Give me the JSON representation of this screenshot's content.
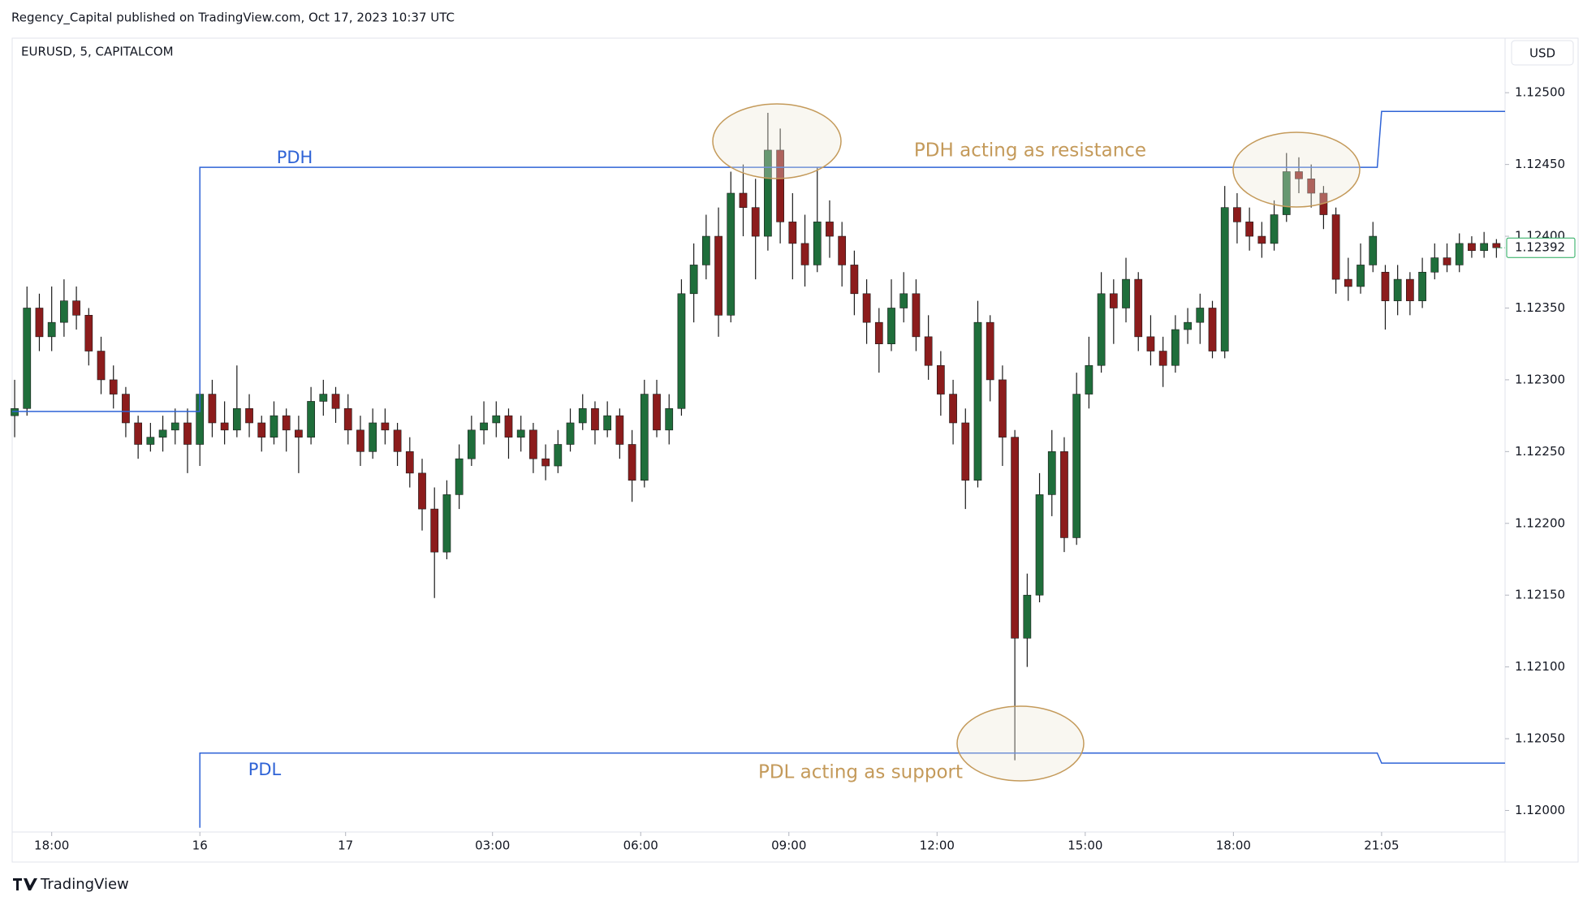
{
  "header": {
    "publisher": "Regency_Capital published on TradingView.com, Oct 17, 2023 10:37 UTC",
    "logo": "TradingView"
  },
  "chart_data": {
    "type": "candlestick",
    "symbol": "EURUSD, 5, CAPITALCOM",
    "currency": "USD",
    "up_color": "#1f6e3b",
    "down_color": "#8c1c1c",
    "wick_color": "#1a1a1a",
    "ohlc": [
      [
        1.12275,
        1.123,
        1.1226,
        1.1228
      ],
      [
        1.1228,
        1.12365,
        1.12275,
        1.1235
      ],
      [
        1.1235,
        1.1236,
        1.1232,
        1.1233
      ],
      [
        1.1233,
        1.12365,
        1.1232,
        1.1234
      ],
      [
        1.1234,
        1.1237,
        1.1233,
        1.12355
      ],
      [
        1.12355,
        1.12365,
        1.12335,
        1.12345
      ],
      [
        1.12345,
        1.1235,
        1.1231,
        1.1232
      ],
      [
        1.1232,
        1.1233,
        1.1229,
        1.123
      ],
      [
        1.123,
        1.1231,
        1.1228,
        1.1229
      ],
      [
        1.1229,
        1.12295,
        1.1226,
        1.1227
      ],
      [
        1.1227,
        1.12275,
        1.12245,
        1.12255
      ],
      [
        1.12255,
        1.1227,
        1.1225,
        1.1226
      ],
      [
        1.1226,
        1.12275,
        1.1225,
        1.12265
      ],
      [
        1.12265,
        1.1228,
        1.12255,
        1.1227
      ],
      [
        1.1227,
        1.1228,
        1.12235,
        1.12255
      ],
      [
        1.12255,
        1.123,
        1.1224,
        1.1229
      ],
      [
        1.1229,
        1.123,
        1.1226,
        1.1227
      ],
      [
        1.1227,
        1.12285,
        1.12255,
        1.12265
      ],
      [
        1.12265,
        1.1231,
        1.1226,
        1.1228
      ],
      [
        1.1228,
        1.1229,
        1.1226,
        1.1227
      ],
      [
        1.1227,
        1.12275,
        1.1225,
        1.1226
      ],
      [
        1.1226,
        1.12285,
        1.12255,
        1.12275
      ],
      [
        1.12275,
        1.1228,
        1.1225,
        1.12265
      ],
      [
        1.12265,
        1.12275,
        1.12235,
        1.1226
      ],
      [
        1.1226,
        1.12295,
        1.12255,
        1.12285
      ],
      [
        1.12285,
        1.123,
        1.12275,
        1.1229
      ],
      [
        1.1229,
        1.12295,
        1.1227,
        1.1228
      ],
      [
        1.1228,
        1.1229,
        1.12255,
        1.12265
      ],
      [
        1.12265,
        1.12275,
        1.1224,
        1.1225
      ],
      [
        1.1225,
        1.1228,
        1.12245,
        1.1227
      ],
      [
        1.1227,
        1.1228,
        1.12255,
        1.12265
      ],
      [
        1.12265,
        1.1227,
        1.1224,
        1.1225
      ],
      [
        1.1225,
        1.1226,
        1.12225,
        1.12235
      ],
      [
        1.12235,
        1.12245,
        1.12195,
        1.1221
      ],
      [
        1.1221,
        1.12225,
        1.12148,
        1.1218
      ],
      [
        1.1218,
        1.1223,
        1.12175,
        1.1222
      ],
      [
        1.1222,
        1.12255,
        1.1221,
        1.12245
      ],
      [
        1.12245,
        1.12275,
        1.1224,
        1.12265
      ],
      [
        1.12265,
        1.12285,
        1.12255,
        1.1227
      ],
      [
        1.1227,
        1.12285,
        1.1226,
        1.12275
      ],
      [
        1.12275,
        1.1228,
        1.12245,
        1.1226
      ],
      [
        1.1226,
        1.12275,
        1.1225,
        1.12265
      ],
      [
        1.12265,
        1.1227,
        1.12235,
        1.12245
      ],
      [
        1.12245,
        1.12255,
        1.1223,
        1.1224
      ],
      [
        1.1224,
        1.12265,
        1.12235,
        1.12255
      ],
      [
        1.12255,
        1.1228,
        1.1225,
        1.1227
      ],
      [
        1.1227,
        1.1229,
        1.12265,
        1.1228
      ],
      [
        1.1228,
        1.12285,
        1.12255,
        1.12265
      ],
      [
        1.12265,
        1.12285,
        1.1226,
        1.12275
      ],
      [
        1.12275,
        1.1228,
        1.12245,
        1.12255
      ],
      [
        1.12255,
        1.12265,
        1.12215,
        1.1223
      ],
      [
        1.1223,
        1.123,
        1.12225,
        1.1229
      ],
      [
        1.1229,
        1.123,
        1.1226,
        1.12265
      ],
      [
        1.12265,
        1.1229,
        1.12255,
        1.1228
      ],
      [
        1.1228,
        1.1237,
        1.12275,
        1.1236
      ],
      [
        1.1236,
        1.12395,
        1.1234,
        1.1238
      ],
      [
        1.1238,
        1.12415,
        1.1237,
        1.124
      ],
      [
        1.124,
        1.1242,
        1.1233,
        1.12345
      ],
      [
        1.12345,
        1.12445,
        1.1234,
        1.1243
      ],
      [
        1.1243,
        1.1245,
        1.124,
        1.1242
      ],
      [
        1.1242,
        1.1244,
        1.1237,
        1.124
      ],
      [
        1.124,
        1.12486,
        1.1239,
        1.1246
      ],
      [
        1.1246,
        1.12475,
        1.12395,
        1.1241
      ],
      [
        1.1241,
        1.1243,
        1.1237,
        1.12395
      ],
      [
        1.12395,
        1.12415,
        1.12365,
        1.1238
      ],
      [
        1.1238,
        1.12448,
        1.12375,
        1.1241
      ],
      [
        1.1241,
        1.12425,
        1.12385,
        1.124
      ],
      [
        1.124,
        1.1241,
        1.12365,
        1.1238
      ],
      [
        1.1238,
        1.1239,
        1.12345,
        1.1236
      ],
      [
        1.1236,
        1.1237,
        1.12325,
        1.1234
      ],
      [
        1.1234,
        1.1235,
        1.12305,
        1.12325
      ],
      [
        1.12325,
        1.1237,
        1.1232,
        1.1235
      ],
      [
        1.1235,
        1.12375,
        1.1234,
        1.1236
      ],
      [
        1.1236,
        1.1237,
        1.1232,
        1.1233
      ],
      [
        1.1233,
        1.12345,
        1.123,
        1.1231
      ],
      [
        1.1231,
        1.1232,
        1.12275,
        1.1229
      ],
      [
        1.1229,
        1.123,
        1.12255,
        1.1227
      ],
      [
        1.1227,
        1.1228,
        1.1221,
        1.1223
      ],
      [
        1.1223,
        1.12355,
        1.12225,
        1.1234
      ],
      [
        1.1234,
        1.12345,
        1.12285,
        1.123
      ],
      [
        1.123,
        1.1231,
        1.1224,
        1.1226
      ],
      [
        1.1226,
        1.12265,
        1.12035,
        1.1212
      ],
      [
        1.1212,
        1.12165,
        1.121,
        1.1215
      ],
      [
        1.1215,
        1.12235,
        1.12145,
        1.1222
      ],
      [
        1.1222,
        1.12265,
        1.12205,
        1.1225
      ],
      [
        1.1225,
        1.1226,
        1.1218,
        1.1219
      ],
      [
        1.1219,
        1.12305,
        1.12185,
        1.1229
      ],
      [
        1.1229,
        1.1233,
        1.1228,
        1.1231
      ],
      [
        1.1231,
        1.12375,
        1.12305,
        1.1236
      ],
      [
        1.1236,
        1.1237,
        1.12325,
        1.1235
      ],
      [
        1.1235,
        1.12385,
        1.1234,
        1.1237
      ],
      [
        1.1237,
        1.12375,
        1.1232,
        1.1233
      ],
      [
        1.1233,
        1.12345,
        1.1231,
        1.1232
      ],
      [
        1.1232,
        1.1233,
        1.12295,
        1.1231
      ],
      [
        1.1231,
        1.12345,
        1.12305,
        1.12335
      ],
      [
        1.12335,
        1.1235,
        1.12325,
        1.1234
      ],
      [
        1.1234,
        1.1236,
        1.12325,
        1.1235
      ],
      [
        1.1235,
        1.12355,
        1.12315,
        1.1232
      ],
      [
        1.1232,
        1.12435,
        1.12315,
        1.1242
      ],
      [
        1.1242,
        1.1243,
        1.12395,
        1.1241
      ],
      [
        1.1241,
        1.1242,
        1.1239,
        1.124
      ],
      [
        1.124,
        1.1241,
        1.12385,
        1.12395
      ],
      [
        1.12395,
        1.12425,
        1.1239,
        1.12415
      ],
      [
        1.12415,
        1.12458,
        1.1241,
        1.12445
      ],
      [
        1.12445,
        1.12455,
        1.1243,
        1.1244
      ],
      [
        1.1244,
        1.1245,
        1.1242,
        1.1243
      ],
      [
        1.1243,
        1.12435,
        1.12405,
        1.12415
      ],
      [
        1.12415,
        1.1242,
        1.1236,
        1.1237
      ],
      [
        1.1237,
        1.12385,
        1.12355,
        1.12365
      ],
      [
        1.12365,
        1.12395,
        1.1236,
        1.1238
      ],
      [
        1.1238,
        1.1241,
        1.12375,
        1.124
      ],
      [
        1.12375,
        1.1238,
        1.12335,
        1.12355
      ],
      [
        1.12355,
        1.1238,
        1.12345,
        1.1237
      ],
      [
        1.1237,
        1.12375,
        1.12345,
        1.12355
      ],
      [
        1.12355,
        1.12385,
        1.1235,
        1.12375
      ],
      [
        1.12375,
        1.12395,
        1.1237,
        1.12385
      ],
      [
        1.12385,
        1.12395,
        1.12375,
        1.1238
      ],
      [
        1.1238,
        1.12402,
        1.12375,
        1.12395
      ],
      [
        1.12395,
        1.124,
        1.12385,
        1.1239
      ],
      [
        1.1239,
        1.12403,
        1.12385,
        1.12395
      ],
      [
        1.12395,
        1.12398,
        1.12385,
        1.12392
      ]
    ],
    "xlim": [
      -0.2,
      120.7
    ],
    "xticks": [
      {
        "value": 3,
        "label": "18:00"
      },
      {
        "value": 15,
        "label": "16"
      },
      {
        "value": 26.8,
        "label": "17"
      },
      {
        "value": 38.7,
        "label": "03:00"
      },
      {
        "value": 50.7,
        "label": "06:00"
      },
      {
        "value": 62.7,
        "label": "09:00"
      },
      {
        "value": 74.7,
        "label": "12:00"
      },
      {
        "value": 86.7,
        "label": "15:00"
      },
      {
        "value": 98.7,
        "label": "18:00"
      },
      {
        "value": 110.7,
        "label": "21:05"
      }
    ],
    "ylim": [
      1.11985,
      1.12538
    ],
    "yticks": [
      {
        "value": 1.12,
        "label": "1.12000"
      },
      {
        "value": 1.1205,
        "label": "1.12050"
      },
      {
        "value": 1.121,
        "label": "1.12100"
      },
      {
        "value": 1.1215,
        "label": "1.12150"
      },
      {
        "value": 1.122,
        "label": "1.12200"
      },
      {
        "value": 1.1225,
        "label": "1.12250"
      },
      {
        "value": 1.123,
        "label": "1.12300"
      },
      {
        "value": 1.1235,
        "label": "1.12350"
      },
      {
        "value": 1.124,
        "label": "1.12400"
      },
      {
        "value": 1.1245,
        "label": "1.12450"
      },
      {
        "value": 1.125,
        "label": "1.12500"
      }
    ],
    "lines": [
      {
        "name": "PDH",
        "color": "#2f63d6",
        "x": [
          -0.2,
          15,
          15,
          110.35,
          110.7,
          120.7
        ],
        "values": [
          1.12278,
          1.12278,
          1.12448,
          1.12448,
          1.12487,
          1.12487
        ]
      },
      {
        "name": "PDL",
        "color": "#2f63d6",
        "x": [
          15,
          15,
          110.35,
          110.7,
          120.7
        ],
        "values": [
          1.11988,
          1.1204,
          1.1204,
          1.12033,
          1.12033
        ]
      }
    ],
    "annotations": [
      {
        "text": "PDH acting as resistance"
      },
      {
        "text": "PDL acting as support"
      }
    ],
    "last_price_label": "1.12392",
    "last_price_color": "#22a85a"
  }
}
